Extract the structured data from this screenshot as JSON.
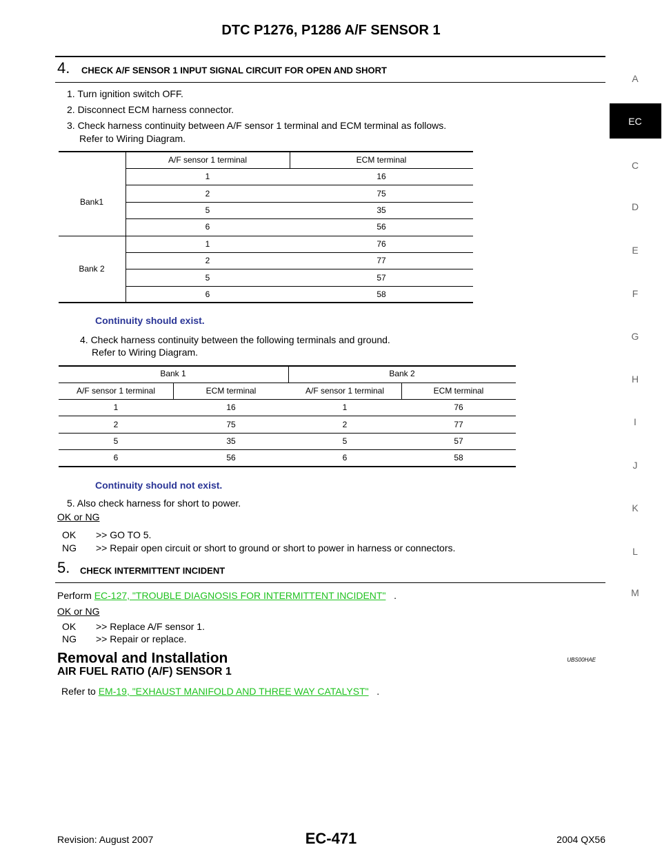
{
  "header": {
    "title": "DTC P1276, P1286 A/F SENSOR 1"
  },
  "step4": {
    "number": "4.",
    "title": "CHECK A/F SENSOR 1 INPUT SIGNAL CIRCUIT FOR OPEN AND SHORT",
    "items": [
      "1. Turn ignition switch OFF.",
      "2. Disconnect ECM harness connector.",
      "3. Check harness continuity between A/F sensor 1 terminal and ECM terminal as follows.",
      "Refer to Wiring Diagram."
    ],
    "table1": {
      "headers": [
        "A/F sensor 1 terminal",
        "ECM terminal"
      ],
      "groups": [
        {
          "label": "Bank1",
          "rows": [
            [
              "1",
              "16"
            ],
            [
              "2",
              "75"
            ],
            [
              "5",
              "35"
            ],
            [
              "6",
              "56"
            ]
          ]
        },
        {
          "label": "Bank 2",
          "rows": [
            [
              "1",
              "76"
            ],
            [
              "2",
              "77"
            ],
            [
              "5",
              "57"
            ],
            [
              "6",
              "58"
            ]
          ]
        }
      ]
    },
    "note1": "Continuity should exist.",
    "item4": [
      "4. Check harness continuity between the following terminals and ground.",
      "Refer to Wiring Diagram."
    ],
    "table2": {
      "banks": [
        "Bank 1",
        "Bank 2"
      ],
      "headers": [
        "A/F sensor 1 terminal",
        "ECM terminal",
        "A/F sensor 1 terminal",
        "ECM terminal"
      ],
      "rows": [
        [
          "1",
          "16",
          "1",
          "76"
        ],
        [
          "2",
          "75",
          "2",
          "77"
        ],
        [
          "5",
          "35",
          "5",
          "57"
        ],
        [
          "6",
          "56",
          "6",
          "58"
        ]
      ]
    },
    "note2": "Continuity should not exist.",
    "item5": "5. Also check harness for short to power.",
    "result": {
      "label": "OK or NG",
      "ok": [
        "OK",
        ">> GO TO 5."
      ],
      "ng": [
        "NG",
        ">> Repair open circuit or short to ground or short to power in harness or connectors."
      ]
    }
  },
  "step5": {
    "number": "5.",
    "title": "CHECK INTERMITTENT INCIDENT",
    "perform": "Perform",
    "link": "EC-127, \"TROUBLE DIAGNOSIS FOR INTERMITTENT INCIDENT\"",
    "end": ".",
    "result": {
      "label": "OK or NG",
      "ok": [
        "OK",
        ">> Replace A/F sensor 1."
      ],
      "ng": [
        "NG",
        ">> Repair or replace."
      ]
    }
  },
  "removal": {
    "title": "Removal and Installation",
    "code": "UBS00HAE",
    "subtitle": "AIR FUEL RATIO (A/F) SENSOR 1",
    "refer": "Refer to",
    "link": "EM-19, \"EXHAUST MANIFOLD AND THREE WAY CATALYST\"",
    "end": "."
  },
  "tabs": [
    "A",
    "EC",
    "C",
    "D",
    "E",
    "F",
    "G",
    "H",
    "I",
    "J",
    "K",
    "L",
    "M"
  ],
  "footer": {
    "revision": "Revision: August 2007",
    "page": "EC-471",
    "model": "2004 QX56"
  }
}
